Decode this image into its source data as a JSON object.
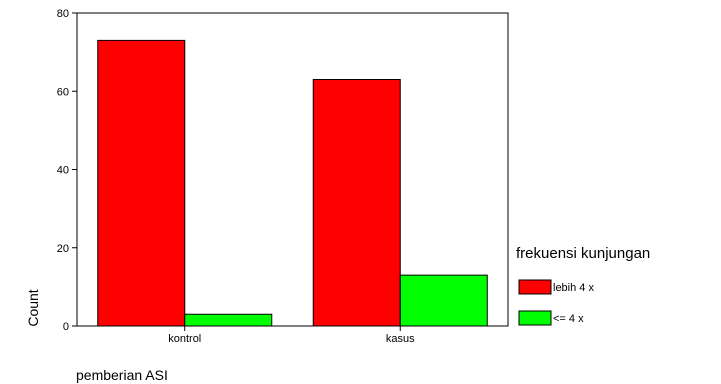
{
  "chart_data": {
    "type": "bar",
    "title": "",
    "xlabel": "pemberian ASI",
    "ylabel": "Count",
    "categories": [
      "kontrol",
      "kasus"
    ],
    "series": [
      {
        "name": "lebih 4 x",
        "values": [
          73,
          63
        ],
        "color": "#ff0000"
      },
      {
        "name": "<= 4 x",
        "values": [
          3,
          13
        ],
        "color": "#00ff00"
      }
    ],
    "ylim": [
      0,
      80
    ],
    "yticks": [
      0,
      20,
      40,
      60,
      80
    ],
    "grid": false,
    "legend": {
      "title": "frekuensi kunjungan",
      "placement": "right"
    }
  }
}
